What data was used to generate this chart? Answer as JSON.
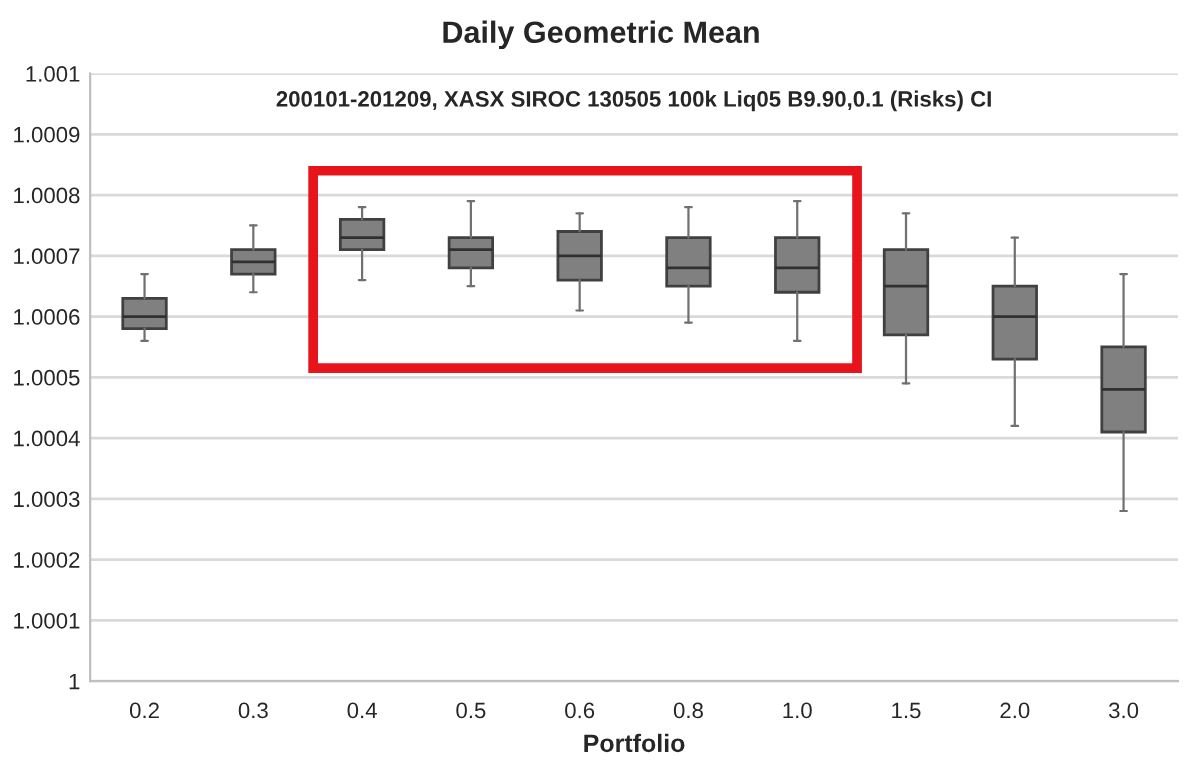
{
  "chart_data": {
    "type": "box",
    "title": "Daily Geometric Mean",
    "xlabel": "Portfolio",
    "annotations": [
      "200101-201209, XASX SIROC 130505 100k Liq05 B9.90,0.1 (Risks) CI"
    ],
    "categories": [
      "0.2",
      "0.3",
      "0.4",
      "0.5",
      "0.6",
      "0.8",
      "1.0",
      "1.5",
      "2.0",
      "3.0"
    ],
    "series": [
      {
        "color": "#808080",
        "boxes": [
          {
            "low": 1.00056,
            "q1": 1.00058,
            "median": 1.0006,
            "q3": 1.00063,
            "high": 1.00067
          },
          {
            "low": 1.00064,
            "q1": 1.00067,
            "median": 1.00069,
            "q3": 1.00071,
            "high": 1.00075
          },
          {
            "low": 1.00066,
            "q1": 1.00071,
            "median": 1.00073,
            "q3": 1.00076,
            "high": 1.00078
          },
          {
            "low": 1.00065,
            "q1": 1.00068,
            "median": 1.00071,
            "q3": 1.00073,
            "high": 1.00079
          },
          {
            "low": 1.00061,
            "q1": 1.00066,
            "median": 1.0007,
            "q3": 1.00074,
            "high": 1.00077
          },
          {
            "low": 1.00059,
            "q1": 1.00065,
            "median": 1.00068,
            "q3": 1.00073,
            "high": 1.00078
          },
          {
            "low": 1.00056,
            "q1": 1.00064,
            "median": 1.00068,
            "q3": 1.00073,
            "high": 1.00079
          },
          {
            "low": 1.00049,
            "q1": 1.00057,
            "median": 1.00065,
            "q3": 1.00071,
            "high": 1.00077
          },
          {
            "low": 1.00042,
            "q1": 1.00053,
            "median": 1.0006,
            "q3": 1.00065,
            "high": 1.00073
          },
          {
            "low": 1.00028,
            "q1": 1.00041,
            "median": 1.00048,
            "q3": 1.00055,
            "high": 1.00067
          }
        ]
      }
    ],
    "ylim": [
      1,
      1.001
    ],
    "yticks": [
      1,
      1.0001,
      1.0002,
      1.0003,
      1.0004,
      1.0005,
      1.0006,
      1.0007,
      1.0008,
      1.0009,
      1.001
    ],
    "grid": "y",
    "legend": false
  }
}
